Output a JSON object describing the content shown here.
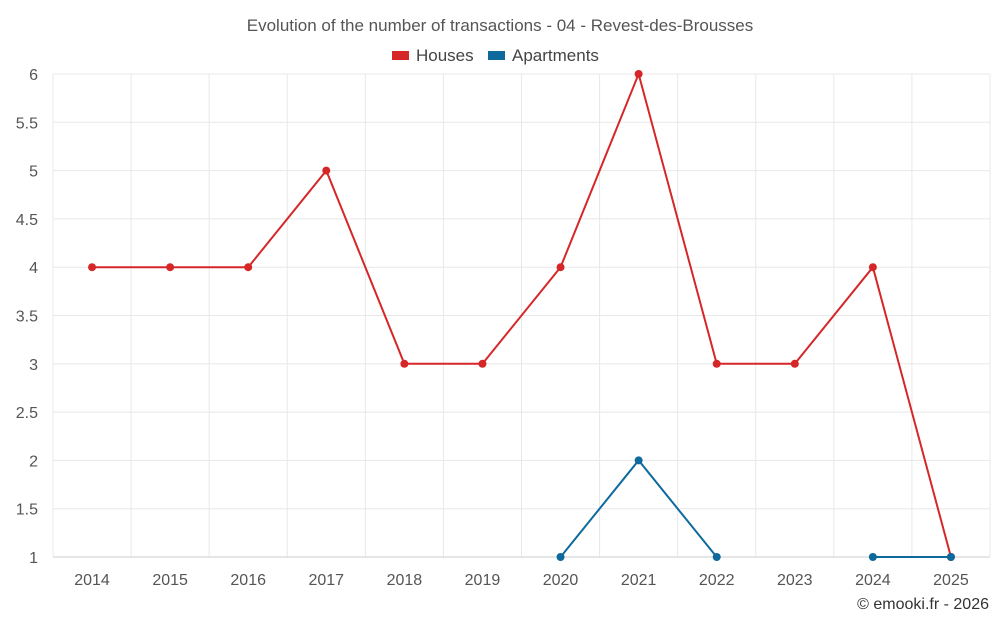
{
  "chart_data": {
    "type": "line",
    "title": "Evolution of the number of transactions - 04 - Revest-des-Brousses",
    "categories": [
      "2014",
      "2015",
      "2016",
      "2017",
      "2018",
      "2019",
      "2020",
      "2021",
      "2022",
      "2023",
      "2024",
      "2025"
    ],
    "series": [
      {
        "name": "Houses",
        "color": "#d62728",
        "values": [
          4,
          4,
          4,
          5,
          3,
          3,
          4,
          6,
          3,
          3,
          4,
          1
        ]
      },
      {
        "name": "Apartments",
        "color": "#0e6a9c",
        "values": [
          null,
          null,
          null,
          null,
          null,
          null,
          1,
          2,
          1,
          null,
          1,
          1
        ]
      }
    ],
    "y_ticks": [
      "1",
      "1.5",
      "2",
      "2.5",
      "3",
      "3.5",
      "4",
      "4.5",
      "5",
      "5.5",
      "6"
    ],
    "ylim": [
      1,
      6
    ],
    "xlabel": "",
    "ylabel": "",
    "grid": true,
    "legend_position": "top-center"
  },
  "credit": "© emooki.fr - 2026"
}
